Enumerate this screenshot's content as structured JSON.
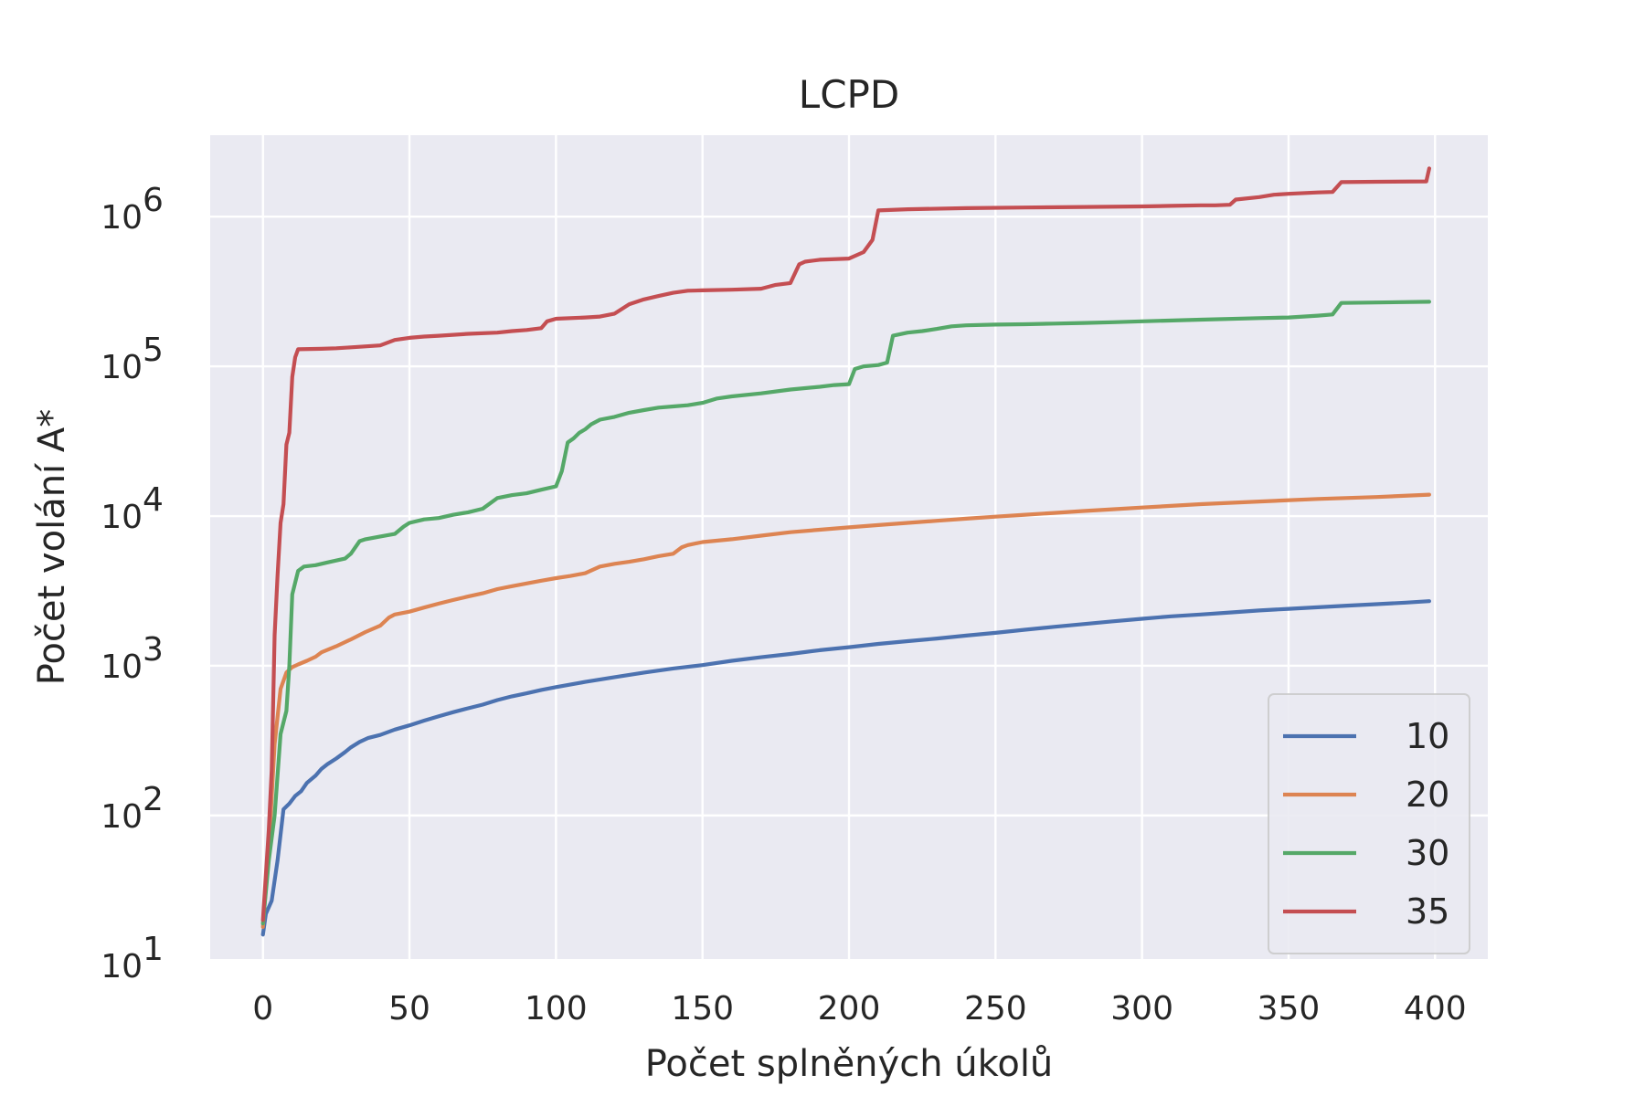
{
  "chart_data": {
    "type": "line",
    "title": "LCPD",
    "xlabel": "Počet splněných úkolů",
    "ylabel": "Počet volání A*",
    "xlim": [
      -18,
      418
    ],
    "ylim": [
      11,
      3500000
    ],
    "yscale": "log",
    "xticks": [
      0,
      50,
      100,
      150,
      200,
      250,
      300,
      350,
      400
    ],
    "yticks": [
      10,
      100,
      1000,
      10000,
      100000,
      1000000
    ],
    "ytick_labels": [
      {
        "base": "10",
        "exp": "1"
      },
      {
        "base": "10",
        "exp": "2"
      },
      {
        "base": "10",
        "exp": "3"
      },
      {
        "base": "10",
        "exp": "4"
      },
      {
        "base": "10",
        "exp": "5"
      },
      {
        "base": "10",
        "exp": "6"
      }
    ],
    "grid": true,
    "background": "#eaeaf2",
    "legend_position": "lower-right",
    "series": [
      {
        "name": "10",
        "color": "#4c72b0",
        "points": [
          [
            0,
            16
          ],
          [
            1,
            22
          ],
          [
            3,
            27
          ],
          [
            5,
            50
          ],
          [
            7,
            110
          ],
          [
            9,
            120
          ],
          [
            11,
            135
          ],
          [
            13,
            145
          ],
          [
            15,
            165
          ],
          [
            18,
            185
          ],
          [
            20,
            205
          ],
          [
            22,
            220
          ],
          [
            25,
            240
          ],
          [
            28,
            265
          ],
          [
            30,
            285
          ],
          [
            33,
            310
          ],
          [
            36,
            330
          ],
          [
            40,
            345
          ],
          [
            45,
            375
          ],
          [
            50,
            400
          ],
          [
            55,
            430
          ],
          [
            60,
            460
          ],
          [
            65,
            490
          ],
          [
            70,
            520
          ],
          [
            75,
            550
          ],
          [
            80,
            590
          ],
          [
            85,
            625
          ],
          [
            90,
            655
          ],
          [
            95,
            690
          ],
          [
            100,
            720
          ],
          [
            110,
            780
          ],
          [
            120,
            840
          ],
          [
            130,
            900
          ],
          [
            140,
            960
          ],
          [
            150,
            1010
          ],
          [
            160,
            1080
          ],
          [
            170,
            1140
          ],
          [
            180,
            1200
          ],
          [
            190,
            1270
          ],
          [
            200,
            1330
          ],
          [
            210,
            1400
          ],
          [
            220,
            1460
          ],
          [
            230,
            1520
          ],
          [
            240,
            1590
          ],
          [
            250,
            1660
          ],
          [
            260,
            1740
          ],
          [
            270,
            1820
          ],
          [
            280,
            1900
          ],
          [
            290,
            1980
          ],
          [
            300,
            2060
          ],
          [
            310,
            2140
          ],
          [
            320,
            2200
          ],
          [
            330,
            2270
          ],
          [
            340,
            2340
          ],
          [
            350,
            2400
          ],
          [
            360,
            2460
          ],
          [
            370,
            2520
          ],
          [
            380,
            2580
          ],
          [
            390,
            2640
          ],
          [
            398,
            2700
          ]
        ]
      },
      {
        "name": "20",
        "color": "#dd8452",
        "points": [
          [
            0,
            18
          ],
          [
            2,
            60
          ],
          [
            4,
            300
          ],
          [
            6,
            700
          ],
          [
            8,
            900
          ],
          [
            10,
            980
          ],
          [
            12,
            1020
          ],
          [
            15,
            1080
          ],
          [
            18,
            1150
          ],
          [
            20,
            1230
          ],
          [
            25,
            1350
          ],
          [
            30,
            1500
          ],
          [
            35,
            1680
          ],
          [
            40,
            1850
          ],
          [
            43,
            2100
          ],
          [
            45,
            2200
          ],
          [
            50,
            2300
          ],
          [
            55,
            2450
          ],
          [
            60,
            2600
          ],
          [
            65,
            2750
          ],
          [
            70,
            2900
          ],
          [
            75,
            3050
          ],
          [
            80,
            3250
          ],
          [
            85,
            3400
          ],
          [
            90,
            3550
          ],
          [
            95,
            3700
          ],
          [
            100,
            3850
          ],
          [
            105,
            3980
          ],
          [
            110,
            4150
          ],
          [
            115,
            4600
          ],
          [
            120,
            4800
          ],
          [
            125,
            4950
          ],
          [
            130,
            5150
          ],
          [
            135,
            5400
          ],
          [
            140,
            5600
          ],
          [
            143,
            6200
          ],
          [
            145,
            6400
          ],
          [
            150,
            6700
          ],
          [
            160,
            7000
          ],
          [
            170,
            7400
          ],
          [
            180,
            7800
          ],
          [
            190,
            8100
          ],
          [
            200,
            8400
          ],
          [
            210,
            8700
          ],
          [
            220,
            9000
          ],
          [
            230,
            9300
          ],
          [
            240,
            9600
          ],
          [
            250,
            9900
          ],
          [
            260,
            10200
          ],
          [
            270,
            10500
          ],
          [
            280,
            10800
          ],
          [
            290,
            11100
          ],
          [
            300,
            11400
          ],
          [
            320,
            12000
          ],
          [
            340,
            12500
          ],
          [
            360,
            13000
          ],
          [
            380,
            13400
          ],
          [
            398,
            13900
          ]
        ]
      },
      {
        "name": "30",
        "color": "#55a868",
        "points": [
          [
            0,
            19
          ],
          [
            2,
            50
          ],
          [
            4,
            100
          ],
          [
            6,
            350
          ],
          [
            8,
            500
          ],
          [
            9,
            1000
          ],
          [
            10,
            3000
          ],
          [
            12,
            4300
          ],
          [
            14,
            4600
          ],
          [
            18,
            4700
          ],
          [
            22,
            4900
          ],
          [
            28,
            5200
          ],
          [
            30,
            5600
          ],
          [
            33,
            6800
          ],
          [
            35,
            7000
          ],
          [
            40,
            7300
          ],
          [
            45,
            7600
          ],
          [
            48,
            8500
          ],
          [
            50,
            9000
          ],
          [
            55,
            9500
          ],
          [
            60,
            9700
          ],
          [
            65,
            10200
          ],
          [
            70,
            10600
          ],
          [
            75,
            11200
          ],
          [
            80,
            13200
          ],
          [
            85,
            13800
          ],
          [
            90,
            14200
          ],
          [
            95,
            15000
          ],
          [
            100,
            15800
          ],
          [
            102,
            20000
          ],
          [
            104,
            31000
          ],
          [
            106,
            33000
          ],
          [
            108,
            36000
          ],
          [
            110,
            38000
          ],
          [
            112,
            41000
          ],
          [
            115,
            44000
          ],
          [
            120,
            46000
          ],
          [
            125,
            49000
          ],
          [
            130,
            51000
          ],
          [
            135,
            53000
          ],
          [
            140,
            54000
          ],
          [
            145,
            55000
          ],
          [
            150,
            57000
          ],
          [
            155,
            61000
          ],
          [
            160,
            63000
          ],
          [
            170,
            66000
          ],
          [
            180,
            70000
          ],
          [
            190,
            73000
          ],
          [
            195,
            75000
          ],
          [
            200,
            76000
          ],
          [
            202,
            96000
          ],
          [
            205,
            100000
          ],
          [
            210,
            102000
          ],
          [
            213,
            106000
          ],
          [
            215,
            160000
          ],
          [
            220,
            168000
          ],
          [
            225,
            172000
          ],
          [
            230,
            178000
          ],
          [
            235,
            185000
          ],
          [
            240,
            188000
          ],
          [
            250,
            190000
          ],
          [
            260,
            191000
          ],
          [
            270,
            193000
          ],
          [
            280,
            195000
          ],
          [
            290,
            197000
          ],
          [
            300,
            200000
          ],
          [
            320,
            205000
          ],
          [
            340,
            210000
          ],
          [
            350,
            212000
          ],
          [
            360,
            218000
          ],
          [
            365,
            222000
          ],
          [
            368,
            265000
          ],
          [
            380,
            267000
          ],
          [
            398,
            270000
          ]
        ]
      },
      {
        "name": "35",
        "color": "#c44e52",
        "points": [
          [
            0,
            20
          ],
          [
            1,
            40
          ],
          [
            2,
            80
          ],
          [
            3,
            200
          ],
          [
            4,
            1600
          ],
          [
            5,
            4000
          ],
          [
            6,
            9000
          ],
          [
            7,
            12000
          ],
          [
            8,
            30000
          ],
          [
            9,
            36000
          ],
          [
            10,
            85000
          ],
          [
            11,
            115000
          ],
          [
            12,
            130000
          ],
          [
            20,
            131000
          ],
          [
            25,
            132000
          ],
          [
            30,
            134000
          ],
          [
            40,
            138000
          ],
          [
            45,
            150000
          ],
          [
            50,
            155000
          ],
          [
            55,
            158000
          ],
          [
            60,
            160000
          ],
          [
            70,
            165000
          ],
          [
            80,
            168000
          ],
          [
            85,
            172000
          ],
          [
            90,
            175000
          ],
          [
            95,
            180000
          ],
          [
            97,
            200000
          ],
          [
            100,
            208000
          ],
          [
            110,
            212000
          ],
          [
            115,
            215000
          ],
          [
            120,
            225000
          ],
          [
            125,
            260000
          ],
          [
            130,
            280000
          ],
          [
            135,
            295000
          ],
          [
            140,
            310000
          ],
          [
            145,
            320000
          ],
          [
            150,
            322000
          ],
          [
            160,
            325000
          ],
          [
            170,
            330000
          ],
          [
            175,
            350000
          ],
          [
            180,
            360000
          ],
          [
            183,
            480000
          ],
          [
            185,
            500000
          ],
          [
            190,
            515000
          ],
          [
            200,
            525000
          ],
          [
            205,
            580000
          ],
          [
            208,
            700000
          ],
          [
            210,
            1100000
          ],
          [
            220,
            1120000
          ],
          [
            240,
            1140000
          ],
          [
            260,
            1150000
          ],
          [
            280,
            1160000
          ],
          [
            300,
            1170000
          ],
          [
            310,
            1180000
          ],
          [
            320,
            1190000
          ],
          [
            325,
            1190000
          ],
          [
            330,
            1200000
          ],
          [
            332,
            1300000
          ],
          [
            340,
            1350000
          ],
          [
            345,
            1400000
          ],
          [
            350,
            1420000
          ],
          [
            360,
            1450000
          ],
          [
            365,
            1460000
          ],
          [
            368,
            1700000
          ],
          [
            380,
            1710000
          ],
          [
            397,
            1720000
          ],
          [
            398,
            2100000
          ]
        ]
      }
    ]
  }
}
